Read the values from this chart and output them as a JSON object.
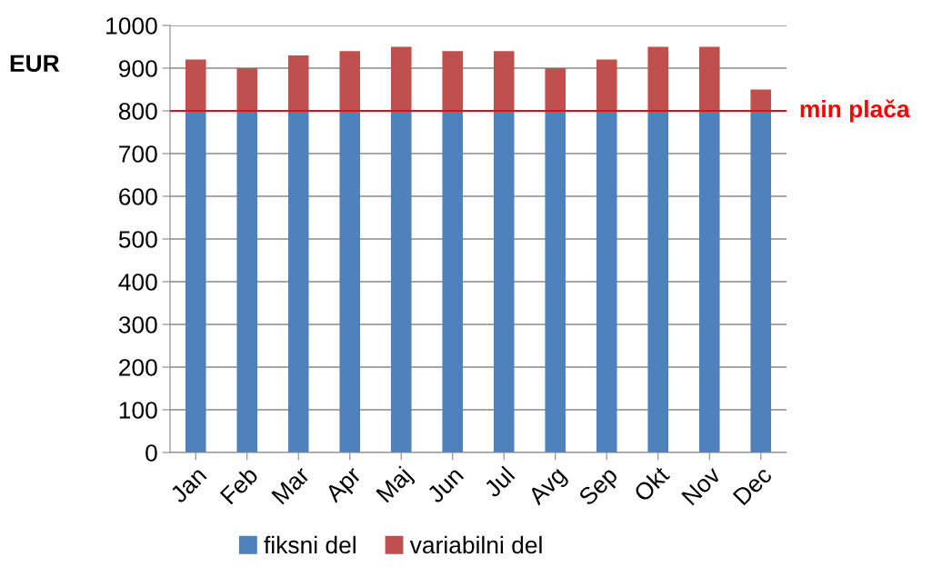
{
  "chart_data": {
    "type": "bar",
    "stacked": true,
    "ylabel": "EUR",
    "categories": [
      "Jan",
      "Feb",
      "Mar",
      "Apr",
      "Maj",
      "Jun",
      "Jul",
      "Avg",
      "Sep",
      "Okt",
      "Nov",
      "Dec"
    ],
    "series": [
      {
        "name": "fiksni del",
        "color": "#4f81bd",
        "values": [
          800,
          800,
          800,
          800,
          800,
          800,
          800,
          800,
          800,
          800,
          800,
          800
        ]
      },
      {
        "name": "variabilni del",
        "color": "#c0504d",
        "values": [
          120,
          100,
          130,
          140,
          150,
          140,
          140,
          100,
          120,
          150,
          150,
          50
        ]
      }
    ],
    "ylim": [
      0,
      1000
    ],
    "yticks": [
      0,
      100,
      200,
      300,
      400,
      500,
      600,
      700,
      800,
      900,
      1000
    ],
    "ref_lines": [
      {
        "axis": "y",
        "value": 800,
        "label": "min plača",
        "color": "#ff0000"
      }
    ],
    "grid": "y",
    "legend": "bottom"
  }
}
